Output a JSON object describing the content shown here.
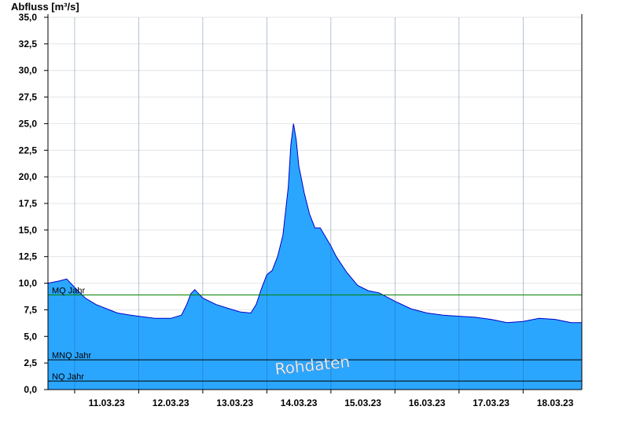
{
  "chart_data": {
    "type": "area",
    "title": "",
    "ylabel": "Abfluss [m³/s]",
    "xlabel": "",
    "ylim": [
      0,
      35
    ],
    "yticks": [
      "0,0",
      "2,5",
      "5,0",
      "7,5",
      "10,0",
      "12,5",
      "15,0",
      "17,5",
      "20,0",
      "22,5",
      "25,0",
      "27,5",
      "30,0",
      "32,5",
      "35,0"
    ],
    "xlim": [
      "2023-03-10T14:00",
      "2023-03-18T22:00"
    ],
    "xticks": [
      "11.03.23",
      "12.03.23",
      "13.03.23",
      "14.03.23",
      "15.03.23",
      "16.03.23",
      "17.03.23",
      "18.03.23"
    ],
    "grid": "horizontal",
    "series": [
      {
        "color": "#2ba6ff",
        "line_color": "#0000c8",
        "x": [
          "2023-03-10T14:00",
          "2023-03-10T18:00",
          "2023-03-10T21:00",
          "2023-03-11T00:00",
          "2023-03-11T04:00",
          "2023-03-11T08:00",
          "2023-03-11T12:00",
          "2023-03-11T16:00",
          "2023-03-11T21:00",
          "2023-03-12T00:00",
          "2023-03-12T06:00",
          "2023-03-12T12:00",
          "2023-03-12T16:00",
          "2023-03-12T18:00",
          "2023-03-12T19:30",
          "2023-03-12T21:00",
          "2023-03-13T00:00",
          "2023-03-13T05:00",
          "2023-03-13T10:00",
          "2023-03-13T14:00",
          "2023-03-13T18:00",
          "2023-03-13T20:00",
          "2023-03-13T22:00",
          "2023-03-14T00:00",
          "2023-03-14T02:00",
          "2023-03-14T04:00",
          "2023-03-14T06:00",
          "2023-03-14T08:00",
          "2023-03-14T09:00",
          "2023-03-14T10:00",
          "2023-03-14T11:00",
          "2023-03-14T12:00",
          "2023-03-14T14:00",
          "2023-03-14T16:00",
          "2023-03-14T18:00",
          "2023-03-14T20:00",
          "2023-03-15T00:00",
          "2023-03-15T02:00",
          "2023-03-15T06:00",
          "2023-03-15T10:00",
          "2023-03-15T14:00",
          "2023-03-15T18:00",
          "2023-03-16T00:00",
          "2023-03-16T06:00",
          "2023-03-16T12:00",
          "2023-03-16T18:00",
          "2023-03-17T00:00",
          "2023-03-17T06:00",
          "2023-03-17T12:00",
          "2023-03-17T18:00",
          "2023-03-18T00:00",
          "2023-03-18T06:00",
          "2023-03-18T12:00",
          "2023-03-18T18:00",
          "2023-03-18T22:00"
        ],
        "values": [
          10.0,
          10.2,
          10.4,
          9.6,
          8.6,
          8.0,
          7.6,
          7.2,
          7.0,
          6.9,
          6.7,
          6.7,
          7.0,
          8.0,
          9.0,
          9.4,
          8.6,
          8.0,
          7.6,
          7.3,
          7.2,
          8.0,
          9.5,
          10.8,
          11.2,
          12.5,
          14.5,
          19.0,
          23.0,
          25.0,
          23.5,
          21.0,
          18.5,
          16.5,
          15.2,
          15.2,
          13.5,
          12.5,
          11.0,
          9.8,
          9.3,
          9.1,
          8.3,
          7.6,
          7.2,
          7.0,
          6.9,
          6.8,
          6.6,
          6.3,
          6.4,
          6.7,
          6.6,
          6.3,
          6.3
        ]
      }
    ],
    "reference_lines": [
      {
        "label": "MQ Jahr",
        "value": 8.9,
        "color": "#008000"
      },
      {
        "label": "MNQ Jahr",
        "value": 2.8,
        "color": "#000000"
      },
      {
        "label": "NQ Jahr",
        "value": 0.8,
        "color": "#000000"
      }
    ],
    "annotations": [
      "Rohdaten"
    ]
  }
}
